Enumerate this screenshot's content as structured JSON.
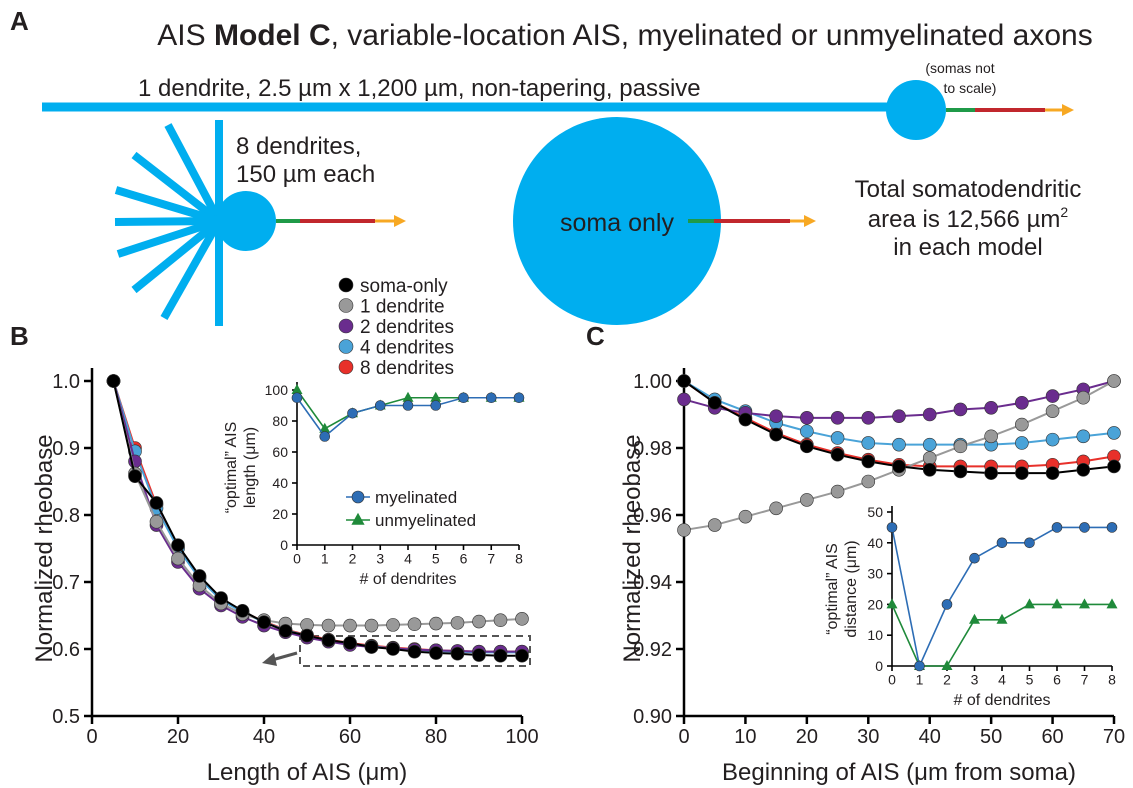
{
  "panel_labels": [
    "A",
    "B",
    "C"
  ],
  "panel_a": {
    "title_parts": [
      "AIS ",
      "Model C",
      ", variable-location AIS, myelinated or unmyelinated axons"
    ],
    "one_dendrite": "1 dendrite, 2.5 µm x 1,200 µm, non-tapering, passive",
    "scale_note": [
      "(somas not",
      "to scale)"
    ],
    "eight_dendrites": [
      "8 dendrites,",
      "150 µm each"
    ],
    "soma_only": "soma only",
    "area_lines": [
      "Total somatodendritic",
      "area is 12,566 µm",
      "in each model"
    ],
    "area_superscript": "2"
  },
  "chart_data": [
    {
      "type": "line",
      "x_label": "Length of AIS (μm)",
      "y_label": "Normalized rheobase",
      "x": [
        5,
        10,
        15,
        20,
        25,
        30,
        35,
        40,
        45,
        50,
        55,
        60,
        65,
        70,
        75,
        80,
        85,
        90,
        95,
        100
      ],
      "xlim": [
        0,
        100
      ],
      "xticks": [
        0,
        20,
        40,
        60,
        80,
        100
      ],
      "ylim": [
        0.5,
        1.0
      ],
      "yticks": [
        0.5,
        0.6,
        0.7,
        0.8,
        0.9,
        {
          "value": 1.0,
          "label": "1.0"
        }
      ],
      "series": [
        {
          "name": "soma-only",
          "color": "#000000",
          "values": [
            1.0,
            0.858,
            0.818,
            0.755,
            0.709,
            0.676,
            0.657,
            0.64,
            0.627,
            0.62,
            0.613,
            0.609,
            0.603,
            0.6,
            0.596,
            0.594,
            0.593,
            0.591,
            0.59,
            0.59
          ]
        },
        {
          "name": "1 dendrite",
          "color": "#999999",
          "values": [
            1.0,
            0.862,
            0.79,
            0.735,
            0.695,
            0.668,
            0.652,
            0.643,
            0.638,
            0.636,
            0.635,
            0.635,
            0.635,
            0.636,
            0.637,
            0.638,
            0.639,
            0.641,
            0.643,
            0.645
          ]
        },
        {
          "name": "2 dendrites",
          "color": "#6a2c8e",
          "values": [
            1.0,
            0.88,
            0.785,
            0.73,
            0.69,
            0.665,
            0.648,
            0.635,
            0.625,
            0.617,
            0.611,
            0.606,
            0.603,
            0.601,
            0.599,
            0.598,
            0.597,
            0.596,
            0.596,
            0.596
          ]
        },
        {
          "name": "4 dendrites",
          "color": "#4aa3d8",
          "values": [
            1.0,
            0.895,
            0.81,
            0.75,
            0.705,
            0.673,
            0.655,
            0.64,
            0.628,
            0.62,
            0.613,
            0.608,
            0.604,
            0.601,
            0.599,
            0.597,
            0.596,
            0.595,
            0.595,
            0.595
          ]
        },
        {
          "name": "8 dendrites",
          "color": "#e8302a",
          "values": [
            1.0,
            0.9,
            0.815,
            0.752,
            0.708,
            0.675,
            0.656,
            0.641,
            0.629,
            0.621,
            0.614,
            0.609,
            0.605,
            0.602,
            0.6,
            0.598,
            0.597,
            0.596,
            0.596,
            0.596
          ]
        }
      ]
    },
    {
      "type": "line",
      "x_label": "# of dendrites",
      "y_label": [
        "“optimal” AIS",
        "length (μm)"
      ],
      "x": [
        0,
        1,
        2,
        3,
        4,
        5,
        6,
        7,
        8
      ],
      "xlim": [
        0,
        8
      ],
      "xticks": [
        0,
        1,
        2,
        3,
        4,
        5,
        6,
        7,
        8
      ],
      "ylim": [
        0,
        100
      ],
      "yticks": [
        0,
        20,
        40,
        60,
        80,
        100
      ],
      "series": [
        {
          "name": "myelinated",
          "color": "#2d6db5",
          "marker": "circle",
          "values": [
            95,
            70,
            85,
            90,
            90,
            90,
            95,
            95,
            95
          ]
        },
        {
          "name": "unmyelinated",
          "color": "#1f8a3a",
          "marker": "triangle",
          "values": [
            100,
            75,
            85,
            90,
            95,
            95,
            95,
            95,
            95
          ]
        }
      ]
    },
    {
      "type": "line",
      "x_label": "Beginning of AIS (μm from soma)",
      "y_label": "Normalized rheobase",
      "x": [
        0,
        5,
        10,
        15,
        20,
        25,
        30,
        35,
        40,
        45,
        50,
        55,
        60,
        65,
        70
      ],
      "xlim": [
        0,
        70
      ],
      "xticks": [
        0,
        10,
        20,
        30,
        40,
        50,
        60,
        70
      ],
      "ylim": [
        0.9,
        1.0
      ],
      "yticks": [
        {
          "value": 0.9,
          "label": "0.90"
        },
        {
          "value": 0.92,
          "label": "0.92"
        },
        {
          "value": 0.94,
          "label": "0.94"
        },
        {
          "value": 0.96,
          "label": "0.96"
        },
        {
          "value": 0.98,
          "label": "0.98"
        },
        {
          "value": 1.0,
          "label": "1.00"
        }
      ],
      "series": [
        {
          "color": "#000000",
          "values": [
            1.0,
            0.9935,
            0.9885,
            0.984,
            0.9805,
            0.978,
            0.976,
            0.9745,
            0.9735,
            0.973,
            0.9725,
            0.9725,
            0.9725,
            0.9735,
            0.9745
          ]
        },
        {
          "color": "#999999",
          "values": [
            0.9555,
            0.957,
            0.9595,
            0.962,
            0.9645,
            0.967,
            0.97,
            0.9735,
            0.977,
            0.9805,
            0.9835,
            0.987,
            0.991,
            0.995,
            1.0
          ]
        },
        {
          "color": "#6a2c8e",
          "values": [
            0.9945,
            0.992,
            0.9905,
            0.9895,
            0.989,
            0.989,
            0.989,
            0.9895,
            0.99,
            0.9915,
            0.992,
            0.9935,
            0.9955,
            0.9975,
            1.0
          ]
        },
        {
          "color": "#4aa3d8",
          "values": [
            1.0,
            0.9945,
            0.991,
            0.9875,
            0.985,
            0.983,
            0.9815,
            0.981,
            0.981,
            0.981,
            0.981,
            0.9815,
            0.9825,
            0.9835,
            0.9845
          ]
        },
        {
          "color": "#e8302a",
          "values": [
            1.0,
            0.9935,
            0.989,
            0.9845,
            0.981,
            0.9785,
            0.9765,
            0.975,
            0.9745,
            0.9745,
            0.9745,
            0.9745,
            0.975,
            0.976,
            0.9775
          ]
        }
      ]
    },
    {
      "type": "line",
      "x_label": "# of dendrites",
      "y_label": [
        "“optimal” AIS",
        "distance (μm)"
      ],
      "x": [
        0,
        1,
        2,
        3,
        4,
        5,
        6,
        7,
        8
      ],
      "xlim": [
        0,
        8
      ],
      "xticks": [
        0,
        1,
        2,
        3,
        4,
        5,
        6,
        7,
        8
      ],
      "ylim": [
        0,
        50
      ],
      "yticks": [
        0,
        10,
        20,
        30,
        40,
        50
      ],
      "series": [
        {
          "color": "#2d6db5",
          "marker": "circle",
          "values": [
            45,
            0,
            20,
            35,
            40,
            40,
            45,
            45,
            45
          ]
        },
        {
          "color": "#1f8a3a",
          "marker": "triangle",
          "values": [
            20,
            0,
            0,
            15,
            15,
            20,
            20,
            20,
            20
          ]
        }
      ]
    }
  ]
}
